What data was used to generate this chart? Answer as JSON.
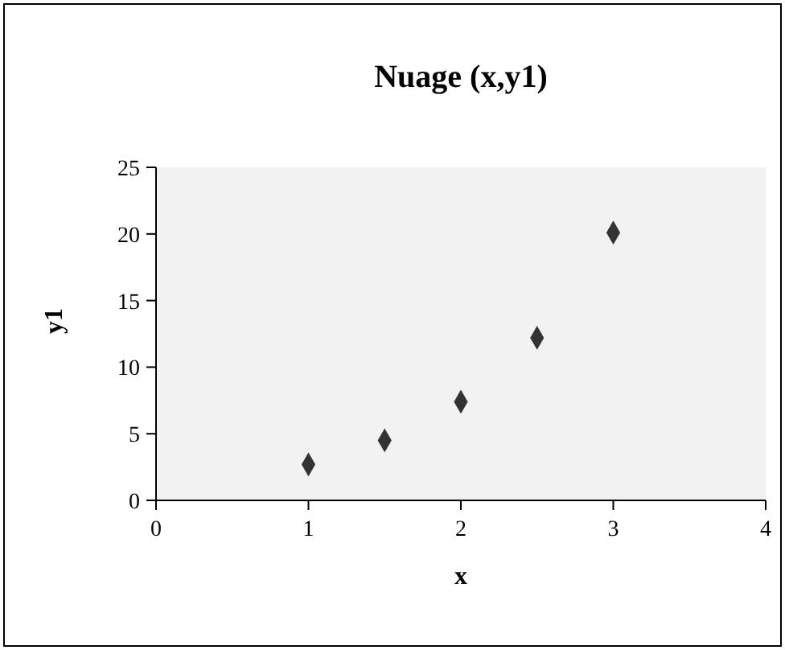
{
  "chart_data": {
    "type": "scatter",
    "title": "Nuage (x,y1)",
    "xlabel": "x",
    "ylabel": "y1",
    "x": [
      1,
      1.5,
      2,
      2.5,
      3
    ],
    "values": [
      2.7,
      4.5,
      7.4,
      12.2,
      20.1
    ],
    "color": "#333333",
    "marker": "diamond",
    "xlim": [
      0,
      4
    ],
    "xticks": [
      0,
      1,
      2,
      3,
      4
    ],
    "ylim": [
      0,
      25
    ],
    "yticks": [
      0,
      5,
      10,
      15,
      20,
      25
    ],
    "grid": false,
    "legend": false
  }
}
